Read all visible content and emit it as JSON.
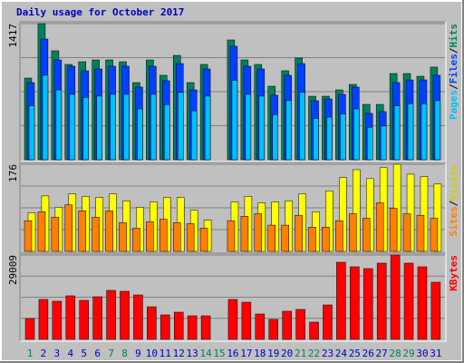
{
  "chart_data": [
    {
      "type": "bar",
      "title": "Daily usage for October 2017",
      "title_color": "#0000c0",
      "legend_separator": "/",
      "ylim": [
        0,
        1417
      ],
      "yticks": [
        1417
      ],
      "series": [
        {
          "name": "Hits",
          "color": "#00805c",
          "values": [
            850,
            1417,
            1134,
            992,
            1020,
            1039,
            1039,
            1020,
            803,
            1039,
            879,
            1086,
            803,
            992,
            0,
            1247,
            1039,
            992,
            765,
            926,
            1058,
            661,
            661,
            727,
            784,
            576,
            576,
            897,
            897,
            869,
            964
          ]
        },
        {
          "name": "Files",
          "color": "#0040ff",
          "values": [
            803,
            1256,
            1039,
            973,
            926,
            945,
            973,
            973,
            756,
            973,
            822,
            1001,
            727,
            945,
            0,
            1181,
            973,
            945,
            671,
            879,
            1001,
            614,
            633,
            680,
            756,
            482,
            501,
            803,
            831,
            831,
            879
          ]
        },
        {
          "name": "Pages",
          "color": "#00c0ff",
          "values": [
            562,
            880,
            727,
            681,
            648,
            662,
            681,
            681,
            529,
            681,
            575,
            701,
            509,
            662,
            0,
            827,
            681,
            662,
            470,
            615,
            701,
            430,
            443,
            476,
            529,
            337,
            351,
            562,
            582,
            582,
            615
          ]
        }
      ]
    },
    {
      "type": "bar",
      "legend_separator": "/",
      "ylim": [
        0,
        176
      ],
      "yticks": [
        176
      ],
      "series": [
        {
          "name": "Visits",
          "color": "#ffff00",
          "values": [
            78,
            112,
            89,
            116,
            111,
            109,
            116,
            102,
            89,
            100,
            109,
            109,
            83,
            63,
            0,
            100,
            111,
            98,
            100,
            102,
            116,
            80,
            122,
            149,
            165,
            147,
            169,
            176,
            156,
            151,
            136
          ]
        },
        {
          "name": "Sites",
          "color": "#ff8000",
          "values": [
            62,
            80,
            69,
            94,
            82,
            69,
            82,
            58,
            47,
            60,
            65,
            58,
            56,
            47,
            0,
            62,
            71,
            76,
            53,
            53,
            73,
            49,
            49,
            62,
            76,
            67,
            98,
            87,
            76,
            73,
            67
          ]
        }
      ]
    },
    {
      "type": "bar",
      "ylim": [
        0,
        29009
      ],
      "yticks": [
        29009
      ],
      "categories": [
        "1",
        "2",
        "3",
        "4",
        "5",
        "6",
        "7",
        "8",
        "9",
        "10",
        "11",
        "12",
        "13",
        "14",
        "15",
        "16",
        "17",
        "18",
        "19",
        "20",
        "21",
        "22",
        "23",
        "24",
        "25",
        "26",
        "27",
        "28",
        "29",
        "30",
        "31"
      ],
      "category_colors": [
        "#00805c",
        "#0000c0",
        "#0000c0",
        "#0000c0",
        "#0000c0",
        "#0000c0",
        "#00805c",
        "#00805c",
        "#0000c0",
        "#0000c0",
        "#0000c0",
        "#0000c0",
        "#0000c0",
        "#00805c",
        "#00805c",
        "#0000c0",
        "#0000c0",
        "#0000c0",
        "#0000c0",
        "#0000c0",
        "#00805c",
        "#00805c",
        "#0000c0",
        "#0000c0",
        "#0000c0",
        "#0000c0",
        "#0000c0",
        "#00805c",
        "#00805c",
        "#0000c0",
        "#0000c0"
      ],
      "series": [
        {
          "name": "KBytes",
          "color": "#ff0000",
          "values": [
            7176,
            13728,
            13104,
            14976,
            13416,
            14664,
            16848,
            16536,
            15288,
            11232,
            8424,
            9360,
            8112,
            8112,
            0,
            13728,
            12792,
            8736,
            6864,
            9672,
            10296,
            5928,
            11856,
            26520,
            24960,
            24336,
            26208,
            29009,
            26208,
            24960,
            19656
          ]
        }
      ]
    }
  ]
}
